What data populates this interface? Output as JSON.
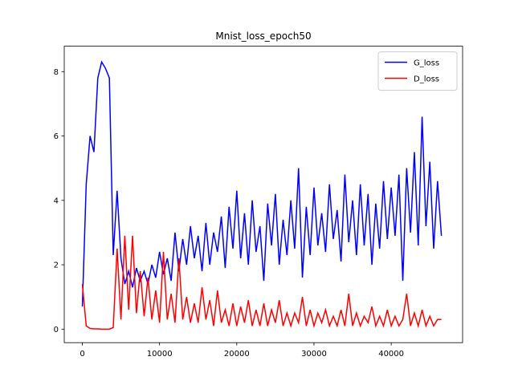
{
  "chart_data": {
    "type": "line",
    "title": "Mnist_loss_epoch50",
    "x": [
      0,
      500,
      1000,
      1500,
      2000,
      2500,
      3000,
      3500,
      4000,
      4500,
      5000,
      5500,
      6000,
      6500,
      7000,
      7500,
      8000,
      8500,
      9000,
      9500,
      10000,
      10500,
      11000,
      11500,
      12000,
      12500,
      13000,
      13500,
      14000,
      14500,
      15000,
      15500,
      16000,
      16500,
      17000,
      17500,
      18000,
      18500,
      19000,
      19500,
      20000,
      20500,
      21000,
      21500,
      22000,
      22500,
      23000,
      23500,
      24000,
      24500,
      25000,
      25500,
      26000,
      26500,
      27000,
      27500,
      28000,
      28500,
      29000,
      29500,
      30000,
      30500,
      31000,
      31500,
      32000,
      32500,
      33000,
      33500,
      34000,
      34500,
      35000,
      35500,
      36000,
      36500,
      37000,
      37500,
      38000,
      38500,
      39000,
      39500,
      40000,
      40500,
      41000,
      41500,
      42000,
      42500,
      43000,
      43500,
      44000,
      44500,
      45000,
      45500,
      46000,
      46500
    ],
    "series": [
      {
        "name": "G_loss",
        "color": "#0000ff",
        "values": [
          0.7,
          4.5,
          6.0,
          5.5,
          7.8,
          8.3,
          8.1,
          7.8,
          2.3,
          4.3,
          2.2,
          1.4,
          1.8,
          1.3,
          1.9,
          1.5,
          1.8,
          1.4,
          2.0,
          1.6,
          2.4,
          1.7,
          2.2,
          1.5,
          3.0,
          1.8,
          2.8,
          2.0,
          3.2,
          2.2,
          2.9,
          1.8,
          3.3,
          2.0,
          3.0,
          2.4,
          3.5,
          1.9,
          3.8,
          2.5,
          4.3,
          2.2,
          3.6,
          2.0,
          4.0,
          2.4,
          3.2,
          1.5,
          3.9,
          2.6,
          4.2,
          2.0,
          3.4,
          2.3,
          4.0,
          2.5,
          5.0,
          1.6,
          3.8,
          2.3,
          4.4,
          2.6,
          3.6,
          2.4,
          4.5,
          2.8,
          3.7,
          2.1,
          4.8,
          2.7,
          4.0,
          2.3,
          4.5,
          2.6,
          4.2,
          2.0,
          3.9,
          2.5,
          4.6,
          2.8,
          4.4,
          2.9,
          4.8,
          1.5,
          5.0,
          3.0,
          5.5,
          2.6,
          6.6,
          3.2,
          5.2,
          2.5,
          4.6,
          2.9
        ]
      },
      {
        "name": "D_loss",
        "color": "#ff0000",
        "values": [
          1.4,
          0.1,
          0.02,
          0.01,
          0.01,
          0.0,
          0.0,
          0.0,
          0.05,
          2.5,
          0.3,
          2.9,
          0.6,
          2.9,
          0.5,
          1.8,
          0.4,
          1.6,
          0.3,
          1.2,
          0.2,
          2.4,
          0.3,
          1.1,
          0.2,
          2.2,
          0.3,
          1.0,
          0.2,
          0.8,
          0.2,
          1.3,
          0.3,
          0.9,
          0.1,
          1.2,
          0.2,
          0.6,
          0.1,
          0.8,
          0.1,
          0.7,
          0.2,
          0.9,
          0.1,
          0.6,
          0.1,
          0.8,
          0.1,
          0.6,
          0.2,
          0.9,
          0.1,
          0.5,
          0.1,
          0.5,
          0.2,
          1.0,
          0.1,
          0.6,
          0.1,
          0.5,
          0.2,
          0.6,
          0.1,
          0.4,
          0.1,
          0.6,
          0.1,
          1.1,
          0.1,
          0.5,
          0.1,
          0.4,
          0.2,
          0.7,
          0.1,
          0.4,
          0.1,
          0.6,
          0.1,
          0.4,
          0.1,
          0.3,
          1.1,
          0.1,
          0.5,
          0.1,
          0.6,
          0.1,
          0.4,
          0.1,
          0.3,
          0.3
        ]
      }
    ],
    "xlim": [
      -2345,
      49245
    ],
    "ylim": [
      -0.42,
      8.79
    ],
    "xticks": [
      0,
      10000,
      20000,
      30000,
      40000
    ],
    "yticks": [
      0,
      2,
      4,
      6,
      8
    ],
    "legend": "upper right"
  }
}
